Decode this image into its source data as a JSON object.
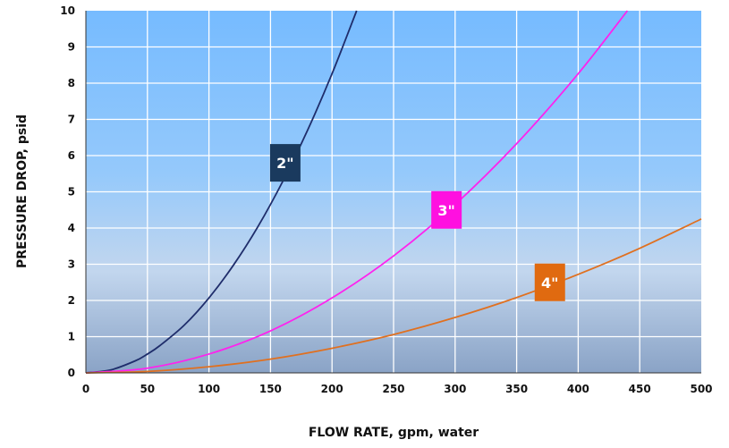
{
  "chart_data": {
    "type": "line",
    "xlabel": "FLOW RATE, gpm, water",
    "ylabel": "PRESSURE DROP, psid",
    "xlim": [
      0,
      500
    ],
    "ylim": [
      0,
      10
    ],
    "x_ticks": [
      "0",
      "50",
      "100",
      "150",
      "200",
      "250",
      "300",
      "350",
      "400",
      "450",
      "500"
    ],
    "y_ticks": [
      "0",
      "1",
      "2",
      "3",
      "4",
      "5",
      "6",
      "7",
      "8",
      "9",
      "10"
    ],
    "grid": true,
    "series": [
      {
        "name": "2\"",
        "color": "#1f2d6b",
        "label_color": "#1a3a5e",
        "x": [
          0,
          20,
          40,
          50,
          60,
          80,
          100,
          120,
          140,
          160,
          180,
          200,
          220
        ],
        "y": [
          0,
          0.08,
          0.33,
          0.52,
          0.75,
          1.32,
          2.07,
          2.98,
          4.05,
          5.29,
          6.69,
          8.26,
          10.0
        ]
      },
      {
        "name": "3\"",
        "color": "#ff22ee",
        "label_color": "#ff10e0",
        "x": [
          0,
          50,
          100,
          150,
          200,
          250,
          300,
          350,
          400,
          440
        ],
        "y": [
          0,
          0.13,
          0.52,
          1.16,
          2.07,
          3.23,
          4.65,
          6.33,
          8.26,
          10.0
        ]
      },
      {
        "name": "4\"",
        "color": "#e07020",
        "label_color": "#e06a10",
        "x": [
          0,
          50,
          100,
          150,
          200,
          250,
          300,
          350,
          400,
          450,
          500
        ],
        "y": [
          0,
          0.04,
          0.17,
          0.38,
          0.68,
          1.06,
          1.53,
          2.08,
          2.72,
          3.44,
          4.25
        ]
      }
    ]
  }
}
